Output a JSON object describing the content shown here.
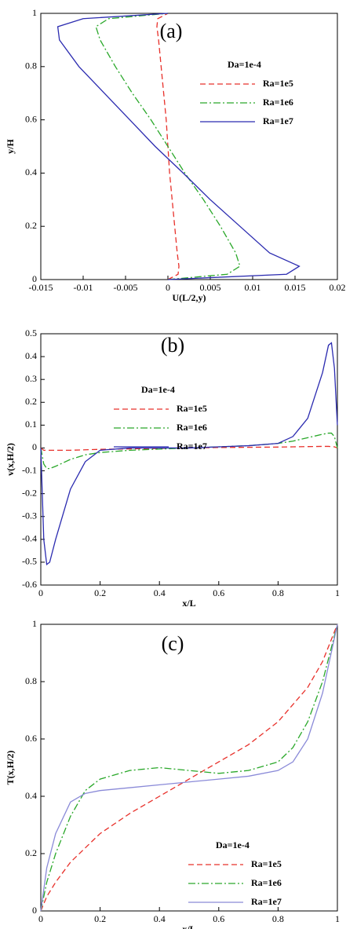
{
  "chart_data": [
    {
      "type": "line",
      "panel_label": "(a)",
      "x_label": "U(L/2,y)",
      "y_label": "y/H",
      "legend_title": "Da=1e-4",
      "xlim": [
        -0.015,
        0.02
      ],
      "xticks": [
        -0.015,
        -0.01,
        -0.005,
        0,
        0.005,
        0.01,
        0.015,
        0.02
      ],
      "ylim": [
        0,
        1
      ],
      "yticks": [
        0,
        0.2,
        0.4,
        0.6,
        0.8,
        1
      ],
      "y": [
        0,
        0.02,
        0.05,
        0.1,
        0.2,
        0.3,
        0.4,
        0.5,
        0.6,
        0.7,
        0.8,
        0.9,
        0.95,
        0.98,
        1
      ],
      "series": [
        {
          "name": "Ra=1e5",
          "color": "#e8302a",
          "style": "dashed",
          "values": [
            0,
            0.0012,
            0.0013,
            0.0011,
            0.0008,
            0.0005,
            0.0002,
            0,
            -0.0002,
            -0.0005,
            -0.0008,
            -0.0011,
            -0.0013,
            -0.0012,
            0
          ]
        },
        {
          "name": "Ra=1e6",
          "color": "#2aa82a",
          "style": "dashdot",
          "values": [
            0,
            0.007,
            0.0085,
            0.008,
            0.0062,
            0.0042,
            0.002,
            0,
            -0.002,
            -0.0042,
            -0.0062,
            -0.008,
            -0.0085,
            -0.007,
            0
          ]
        },
        {
          "name": "Ra=1e7",
          "color": "#2b2bb0",
          "style": "solid",
          "values": [
            0,
            0.014,
            0.0155,
            0.012,
            0.0085,
            0.005,
            0.0018,
            -0.0015,
            -0.0045,
            -0.0075,
            -0.0105,
            -0.0128,
            -0.013,
            -0.01,
            0
          ]
        }
      ]
    },
    {
      "type": "line",
      "panel_label": "(b)",
      "x_label": "x/L",
      "y_label": "v(x,H/2)",
      "legend_title": "Da=1e-4",
      "xlim": [
        0,
        1
      ],
      "xticks": [
        0,
        0.2,
        0.4,
        0.6,
        0.8,
        1
      ],
      "ylim": [
        -0.6,
        0.5
      ],
      "yticks": [
        -0.6,
        -0.5,
        -0.4,
        -0.3,
        -0.2,
        -0.1,
        0,
        0.1,
        0.2,
        0.3,
        0.4,
        0.5
      ],
      "x": [
        0,
        0.01,
        0.02,
        0.03,
        0.05,
        0.1,
        0.15,
        0.2,
        0.3,
        0.4,
        0.5,
        0.6,
        0.7,
        0.8,
        0.85,
        0.9,
        0.95,
        0.97,
        0.98,
        0.99,
        1
      ],
      "series": [
        {
          "name": "Ra=1e5",
          "color": "#e8302a",
          "style": "dashed",
          "values": [
            0,
            -0.01,
            -0.01,
            -0.01,
            -0.01,
            -0.01,
            -0.008,
            -0.006,
            -0.004,
            -0.002,
            0,
            0.002,
            0.003,
            0.004,
            0.005,
            0.006,
            0.007,
            0.007,
            0.006,
            0.005,
            0
          ]
        },
        {
          "name": "Ra=1e6",
          "color": "#2aa82a",
          "style": "dashdot",
          "values": [
            0,
            -0.07,
            -0.09,
            -0.09,
            -0.08,
            -0.05,
            -0.03,
            -0.02,
            -0.01,
            -0.005,
            0,
            0.005,
            0.01,
            0.02,
            0.03,
            0.045,
            0.06,
            0.065,
            0.065,
            0.05,
            0
          ]
        },
        {
          "name": "Ra=1e7",
          "color": "#2b2bb0",
          "style": "solid",
          "values": [
            0,
            -0.4,
            -0.51,
            -0.5,
            -0.4,
            -0.18,
            -0.06,
            -0.01,
            0,
            0,
            0,
            0.005,
            0.01,
            0.02,
            0.05,
            0.13,
            0.33,
            0.45,
            0.46,
            0.35,
            0.1
          ]
        }
      ]
    },
    {
      "type": "line",
      "panel_label": "(c)",
      "x_label": "x/L",
      "y_label": "T(x,H/2)",
      "legend_title": "Da=1e-4",
      "xlim": [
        0,
        1
      ],
      "xticks": [
        0,
        0.2,
        0.4,
        0.6,
        0.8,
        1
      ],
      "ylim": [
        0,
        1
      ],
      "yticks": [
        0,
        0.2,
        0.4,
        0.6,
        0.8,
        1
      ],
      "x": [
        0,
        0.02,
        0.05,
        0.1,
        0.15,
        0.2,
        0.3,
        0.4,
        0.5,
        0.6,
        0.7,
        0.8,
        0.85,
        0.9,
        0.95,
        1
      ],
      "series": [
        {
          "name": "Ra=1e5",
          "color": "#e8302a",
          "style": "dashed",
          "values": [
            0,
            0.05,
            0.1,
            0.17,
            0.22,
            0.27,
            0.34,
            0.4,
            0.46,
            0.52,
            0.58,
            0.66,
            0.72,
            0.78,
            0.87,
            1
          ]
        },
        {
          "name": "Ra=1e6",
          "color": "#2aa82a",
          "style": "dashdot",
          "values": [
            0,
            0.1,
            0.2,
            0.33,
            0.42,
            0.46,
            0.49,
            0.5,
            0.49,
            0.48,
            0.49,
            0.52,
            0.57,
            0.66,
            0.8,
            1
          ]
        },
        {
          "name": "Ra=1e7",
          "color": "#8a8ad8",
          "style": "solid",
          "values": [
            0,
            0.15,
            0.27,
            0.38,
            0.41,
            0.42,
            0.43,
            0.44,
            0.45,
            0.46,
            0.47,
            0.49,
            0.52,
            0.6,
            0.76,
            1
          ]
        }
      ]
    }
  ]
}
